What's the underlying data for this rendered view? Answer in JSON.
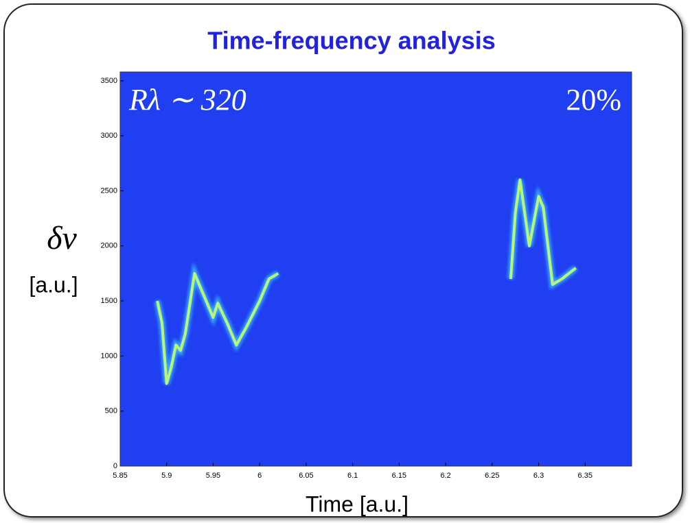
{
  "chart_data": {
    "type": "line",
    "title": "Time-frequency analysis",
    "x_label": "Time [a.u.]",
    "y_label": "δν",
    "y_label_unit": "[a.u.]",
    "annotations": [
      "Rλ ∼ 320",
      "20%"
    ],
    "background": "#1f3ff0",
    "xlim": [
      5.85,
      6.4
    ],
    "xticks": [
      5.85,
      5.9,
      5.95,
      6,
      6.05,
      6.1,
      6.15,
      6.2,
      6.25,
      6.3,
      6.35
    ],
    "ylim": [
      0,
      3580
    ],
    "yticks": [
      0,
      500,
      1000,
      1500,
      2000,
      2500,
      3000,
      3500
    ],
    "series": [
      {
        "color": "#b8f57a",
        "x": [
          5.89,
          5.895,
          5.9,
          5.905,
          5.91,
          5.915,
          5.92,
          5.93,
          5.94,
          5.95,
          5.955,
          5.965,
          5.975,
          5.985,
          6.0,
          6.01,
          6.02
        ],
        "values": [
          1500,
          1300,
          750,
          900,
          1100,
          1050,
          1200,
          1750,
          1550,
          1350,
          1480,
          1300,
          1100,
          1250,
          1500,
          1700,
          1750
        ]
      },
      {
        "color": "#b8f57a",
        "x": [
          6.27,
          6.275,
          6.28,
          6.29,
          6.3,
          6.305,
          6.315,
          6.325,
          6.34
        ],
        "values": [
          1700,
          2300,
          2600,
          2000,
          2450,
          2350,
          1650,
          1700,
          1800
        ]
      }
    ]
  }
}
